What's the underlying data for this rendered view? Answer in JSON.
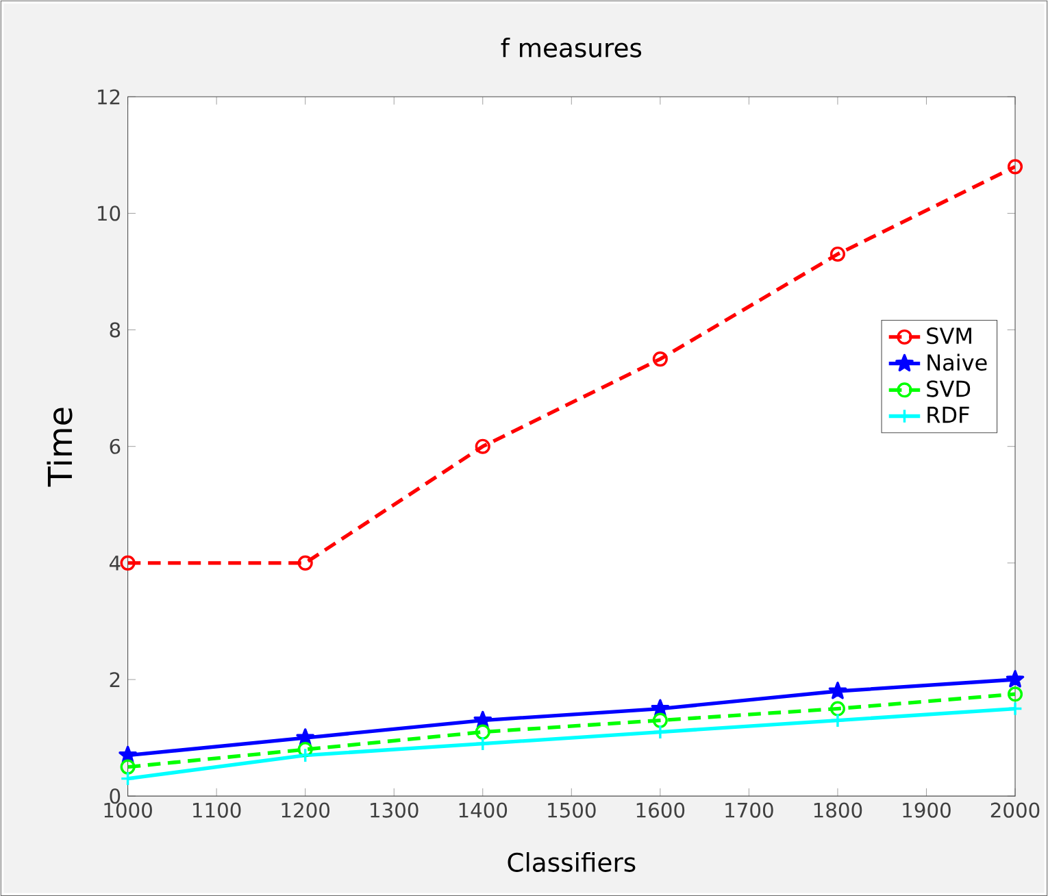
{
  "chart_data": {
    "type": "line",
    "title": "f measures",
    "xlabel": "Classifiers",
    "ylabel": "Time",
    "x": [
      1000,
      1200,
      1400,
      1600,
      1800,
      2000
    ],
    "series": [
      {
        "name": "SVM",
        "color": "#ff0000",
        "marker": "circle",
        "line_style": "dashed",
        "values": [
          4,
          4,
          6,
          7.5,
          9.3,
          10.8
        ]
      },
      {
        "name": "Naive",
        "color": "#0000ff",
        "marker": "star",
        "line_style": "solid",
        "values": [
          0.7,
          1.0,
          1.3,
          1.5,
          1.8,
          2.0
        ]
      },
      {
        "name": "SVD",
        "color": "#00ff00",
        "marker": "circle",
        "line_style": "dashed",
        "values": [
          0.5,
          0.8,
          1.1,
          1.3,
          1.5,
          1.75
        ]
      },
      {
        "name": "RDF",
        "color": "#00ffff",
        "marker": "cross",
        "line_style": "solid",
        "values": [
          0.3,
          0.7,
          0.9,
          1.1,
          1.3,
          1.5
        ]
      }
    ],
    "xlim": [
      1000,
      2000
    ],
    "xticks": [
      1000,
      1100,
      1200,
      1300,
      1400,
      1500,
      1600,
      1700,
      1800,
      1900,
      2000
    ],
    "ylim": [
      0,
      12
    ],
    "yticks": [
      0,
      2,
      4,
      6,
      8,
      10,
      12
    ],
    "grid": false,
    "legend": "right"
  }
}
